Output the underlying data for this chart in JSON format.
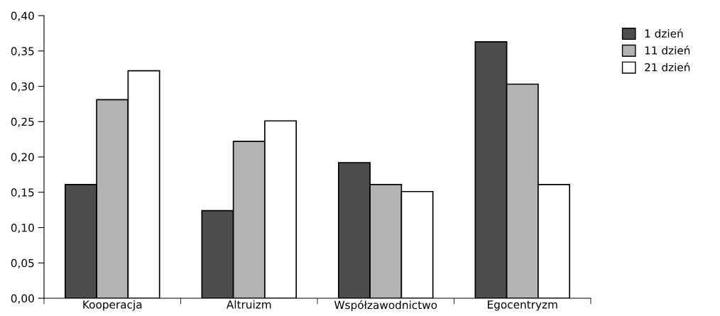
{
  "chart_data": {
    "type": "bar",
    "categories": [
      "Kooperacja",
      "Altruizm",
      "Współzawodnictwo",
      "Egocentryzm"
    ],
    "series": [
      {
        "name": "1 dzień",
        "color": "#4d4d4f",
        "values": [
          0.161,
          0.124,
          0.192,
          0.363
        ]
      },
      {
        "name": "11 dzień",
        "color": "#b3b3b3",
        "values": [
          0.281,
          0.222,
          0.161,
          0.303
        ]
      },
      {
        "name": "21 dzień",
        "color": "#ffffff",
        "values": [
          0.322,
          0.251,
          0.151,
          0.161
        ]
      }
    ],
    "ylim": [
      0,
      0.4
    ],
    "yticks": [
      {
        "value": 0,
        "label": "0,00"
      },
      {
        "value": 0.05,
        "label": "0,05"
      },
      {
        "value": 0.1,
        "label": "0,10"
      },
      {
        "value": 0.15,
        "label": "0,15"
      },
      {
        "value": 0.2,
        "label": "0,20"
      },
      {
        "value": 0.25,
        "label": "0,25"
      },
      {
        "value": 0.3,
        "label": "0,30"
      },
      {
        "value": 0.35,
        "label": "0,35"
      },
      {
        "value": 0.4,
        "label": "0,40"
      }
    ],
    "grid": false,
    "legend": "right"
  }
}
